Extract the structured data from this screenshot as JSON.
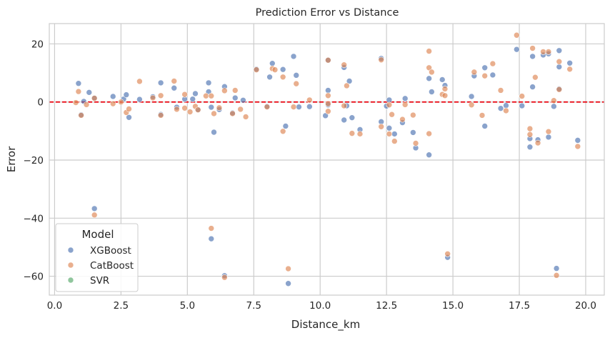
{
  "chart_data": {
    "type": "scatter",
    "title": "Prediction Error vs Distance",
    "xlabel": "Distance_km",
    "ylabel": "Error",
    "xlim": [
      -0.2,
      20.7
    ],
    "ylim": [
      -66.5,
      27
    ],
    "x_ticks": [
      0,
      2.5,
      5,
      7.5,
      10,
      12.5,
      15,
      17.5,
      20
    ],
    "x_tick_labels": [
      "0.0",
      "2.5",
      "5.0",
      "7.5",
      "10.0",
      "12.5",
      "15.0",
      "17.5",
      "20.0"
    ],
    "y_ticks": [
      20,
      0,
      -20,
      -40,
      -60
    ],
    "y_tick_labels": [
      "20",
      "0",
      "−20",
      "−40",
      "−60"
    ],
    "grid": true,
    "reference_line": {
      "y": 0,
      "color": "#e8000b",
      "style": "dashed"
    },
    "legend": {
      "title": "Model",
      "position": "lower-left",
      "entries": [
        {
          "label": "XGBoost",
          "color": "#4c72b0"
        },
        {
          "label": "CatBoost",
          "color": "#dd8452"
        },
        {
          "label": "SVR",
          "color": "#55a868"
        }
      ]
    },
    "series": [
      {
        "name": "XGBoost",
        "color": "#4c72b0",
        "points": [
          [
            0.9,
            6.4
          ],
          [
            1.0,
            -4.4
          ],
          [
            1.1,
            0.2
          ],
          [
            1.3,
            3.3
          ],
          [
            1.5,
            1.4
          ],
          [
            1.5,
            -36.7
          ],
          [
            2.2,
            1.9
          ],
          [
            2.6,
            1.0
          ],
          [
            2.7,
            2.5
          ],
          [
            2.8,
            -5.3
          ],
          [
            3.2,
            0.9
          ],
          [
            3.7,
            1.8
          ],
          [
            4.0,
            6.6
          ],
          [
            4.0,
            -4.3
          ],
          [
            4.5,
            4.8
          ],
          [
            4.6,
            -1.8
          ],
          [
            4.9,
            1.0
          ],
          [
            5.2,
            1.0
          ],
          [
            5.3,
            2.9
          ],
          [
            5.4,
            -2.6
          ],
          [
            5.8,
            6.6
          ],
          [
            5.8,
            3.5
          ],
          [
            5.9,
            -1.8
          ],
          [
            6.0,
            -10.4
          ],
          [
            5.9,
            -47.1
          ],
          [
            6.2,
            -2.6
          ],
          [
            6.4,
            5.3
          ],
          [
            6.4,
            -59.8
          ],
          [
            6.7,
            -3.8
          ],
          [
            6.8,
            1.4
          ],
          [
            7.1,
            0.6
          ],
          [
            7.6,
            11.3
          ],
          [
            8.0,
            -1.5
          ],
          [
            8.1,
            8.6
          ],
          [
            8.2,
            13.3
          ],
          [
            8.6,
            11.2
          ],
          [
            8.7,
            -8.3
          ],
          [
            8.8,
            -62.5
          ],
          [
            9.0,
            15.7
          ],
          [
            9.1,
            9.2
          ],
          [
            9.2,
            -1.7
          ],
          [
            9.6,
            -1.6
          ],
          [
            10.3,
            4.0
          ],
          [
            10.3,
            -1.0
          ],
          [
            10.2,
            -4.7
          ],
          [
            10.3,
            14.4
          ],
          [
            10.9,
            11.9
          ],
          [
            10.9,
            -6.2
          ],
          [
            11.0,
            -1.3
          ],
          [
            11.1,
            7.2
          ],
          [
            11.2,
            -5.4
          ],
          [
            11.5,
            -9.5
          ],
          [
            12.3,
            15.0
          ],
          [
            12.3,
            -6.8
          ],
          [
            12.5,
            -1.4
          ],
          [
            12.6,
            0.7
          ],
          [
            12.6,
            -9.0
          ],
          [
            12.8,
            -11.0
          ],
          [
            13.1,
            -7.1
          ],
          [
            13.2,
            1.2
          ],
          [
            13.5,
            -10.5
          ],
          [
            13.6,
            -15.8
          ],
          [
            14.1,
            8.1
          ],
          [
            14.1,
            -18.2
          ],
          [
            14.2,
            3.5
          ],
          [
            14.6,
            7.7
          ],
          [
            14.7,
            5.7
          ],
          [
            14.8,
            -53.5
          ],
          [
            15.7,
            1.9
          ],
          [
            15.8,
            9.0
          ],
          [
            16.2,
            11.8
          ],
          [
            16.2,
            -8.3
          ],
          [
            16.5,
            9.3
          ],
          [
            16.8,
            -2.2
          ],
          [
            17.0,
            -1.2
          ],
          [
            17.4,
            18.1
          ],
          [
            17.6,
            -1.3
          ],
          [
            17.9,
            -12.6
          ],
          [
            17.9,
            -15.5
          ],
          [
            18.0,
            15.7
          ],
          [
            18.0,
            5.2
          ],
          [
            18.2,
            -13.0
          ],
          [
            18.4,
            16.2
          ],
          [
            18.6,
            16.6
          ],
          [
            18.6,
            -12.1
          ],
          [
            18.8,
            -1.5
          ],
          [
            19.0,
            17.7
          ],
          [
            19.0,
            12.1
          ],
          [
            19.0,
            4.5
          ],
          [
            18.9,
            -57.3
          ],
          [
            19.4,
            13.4
          ],
          [
            19.7,
            -13.2
          ]
        ]
      },
      {
        "name": "CatBoost",
        "color": "#dd8452",
        "points": [
          [
            0.8,
            -0.2
          ],
          [
            0.9,
            3.6
          ],
          [
            1.0,
            -4.6
          ],
          [
            1.2,
            -0.9
          ],
          [
            1.5,
            1.3
          ],
          [
            1.5,
            -38.9
          ],
          [
            2.2,
            -0.6
          ],
          [
            2.5,
            0.0
          ],
          [
            2.7,
            -3.6
          ],
          [
            2.8,
            -2.4
          ],
          [
            3.2,
            7.1
          ],
          [
            3.7,
            1.4
          ],
          [
            4.0,
            2.2
          ],
          [
            4.0,
            -4.6
          ],
          [
            4.5,
            7.2
          ],
          [
            4.6,
            -2.5
          ],
          [
            4.9,
            -2.1
          ],
          [
            4.9,
            2.6
          ],
          [
            5.1,
            -3.4
          ],
          [
            5.3,
            -1.5
          ],
          [
            5.4,
            -2.7
          ],
          [
            5.7,
            2.1
          ],
          [
            5.9,
            2.1
          ],
          [
            6.0,
            -4.0
          ],
          [
            5.9,
            -43.5
          ],
          [
            6.2,
            -2.0
          ],
          [
            6.4,
            3.9
          ],
          [
            6.4,
            -60.4
          ],
          [
            6.7,
            -4.0
          ],
          [
            6.8,
            4.0
          ],
          [
            7.0,
            -2.5
          ],
          [
            7.2,
            -5.1
          ],
          [
            7.6,
            11.1
          ],
          [
            8.0,
            -1.7
          ],
          [
            8.2,
            11.5
          ],
          [
            8.3,
            11.1
          ],
          [
            8.6,
            8.6
          ],
          [
            8.6,
            -10.1
          ],
          [
            8.8,
            -57.4
          ],
          [
            9.0,
            -1.7
          ],
          [
            9.1,
            6.3
          ],
          [
            9.6,
            0.7
          ],
          [
            10.3,
            2.2
          ],
          [
            10.3,
            -3.2
          ],
          [
            10.3,
            -0.6
          ],
          [
            10.3,
            14.4
          ],
          [
            10.9,
            12.8
          ],
          [
            10.9,
            -1.3
          ],
          [
            11.0,
            5.6
          ],
          [
            11.2,
            -10.8
          ],
          [
            11.5,
            -11.0
          ],
          [
            12.3,
            14.5
          ],
          [
            12.3,
            -8.5
          ],
          [
            12.6,
            -11.0
          ],
          [
            12.7,
            -4.3
          ],
          [
            12.6,
            -1.0
          ],
          [
            12.8,
            -13.5
          ],
          [
            13.1,
            -6.0
          ],
          [
            13.2,
            -0.9
          ],
          [
            13.5,
            -4.5
          ],
          [
            13.6,
            -14.2
          ],
          [
            14.1,
            17.5
          ],
          [
            14.1,
            11.8
          ],
          [
            14.1,
            -10.9
          ],
          [
            14.2,
            10.3
          ],
          [
            14.6,
            2.6
          ],
          [
            14.7,
            4.5
          ],
          [
            14.7,
            2.2
          ],
          [
            14.8,
            -52.3
          ],
          [
            15.7,
            -1.0
          ],
          [
            15.8,
            10.3
          ],
          [
            16.2,
            9.0
          ],
          [
            16.1,
            -4.6
          ],
          [
            16.5,
            13.2
          ],
          [
            16.8,
            4.0
          ],
          [
            17.0,
            -3.0
          ],
          [
            17.4,
            23.0
          ],
          [
            17.6,
            2.0
          ],
          [
            17.9,
            -11.2
          ],
          [
            17.9,
            -9.2
          ],
          [
            18.0,
            18.5
          ],
          [
            18.1,
            8.5
          ],
          [
            18.2,
            -14.1
          ],
          [
            18.4,
            17.3
          ],
          [
            18.6,
            17.3
          ],
          [
            18.6,
            -10.2
          ],
          [
            18.8,
            0.5
          ],
          [
            19.0,
            13.9
          ],
          [
            19.0,
            4.3
          ],
          [
            18.9,
            -59.7
          ],
          [
            19.4,
            11.3
          ],
          [
            19.7,
            -15.3
          ]
        ]
      },
      {
        "name": "SVR",
        "color": "#55a868",
        "points": []
      }
    ]
  }
}
